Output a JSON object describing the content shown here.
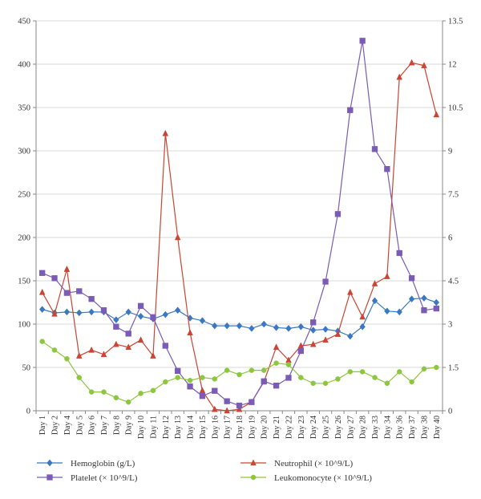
{
  "chart_data": {
    "type": "line",
    "title": "",
    "xlabel": "",
    "ylabel": "",
    "y2label": "",
    "categories": [
      "Day 1",
      "Day 2",
      "Day 4",
      "Day 5",
      "Day 6",
      "Day 7",
      "Day 8",
      "Day 9",
      "Day 10",
      "Day 11",
      "Day 12",
      "Day 13",
      "Day 14",
      "Day 15",
      "Day 16",
      "Day 17",
      "Day 18",
      "Day 19",
      "Day 20",
      "Day 21",
      "Day 22",
      "Day 23",
      "Day 24",
      "Day 25",
      "Day 26",
      "Day 27",
      "Day 28",
      "Day 33",
      "Day 34",
      "Day 36",
      "Day 37",
      "Day 38",
      "Day 40"
    ],
    "ylim": [
      0,
      450
    ],
    "y2lim": [
      0,
      13.5
    ],
    "yticks": [
      "0",
      "50",
      "100",
      "150",
      "200",
      "250",
      "300",
      "350",
      "400",
      "450"
    ],
    "y2ticks": [
      "0",
      "1.5",
      "3",
      "4.5",
      "6",
      "7.5",
      "9",
      "10.5",
      "12",
      "13.5"
    ],
    "grid": true,
    "legend_position": "bottom",
    "series": [
      {
        "name": "Hemoglobin (g/L)",
        "axis": "left",
        "color": "#3a78c4",
        "marker": "diamond",
        "values": [
          117,
          113,
          114,
          113,
          114,
          114,
          105,
          114,
          109,
          106,
          111,
          116,
          107,
          104,
          98,
          98,
          98,
          95,
          100,
          96,
          95,
          97,
          93,
          94,
          92,
          86,
          97,
          127,
          115,
          114,
          129,
          130,
          125
        ]
      },
      {
        "name": "Neutrophil (× 10^9/L)",
        "axis": "right",
        "color": "#cc4433",
        "marker": "triangle",
        "values": [
          4.1,
          3.35,
          4.9,
          1.9,
          2.1,
          1.95,
          2.3,
          2.2,
          2.45,
          1.9,
          9.6,
          6.0,
          2.7,
          0.7,
          0.05,
          0.0,
          0.05,
          0.3,
          1.0,
          2.2,
          1.75,
          2.25,
          2.3,
          2.45,
          2.65,
          4.1,
          3.25,
          4.4,
          4.65,
          11.55,
          12.05,
          11.95,
          10.25
        ]
      },
      {
        "name": "Platelet (× 10^9/L)",
        "axis": "left",
        "color": "#7a5bb5",
        "marker": "square",
        "values": [
          159,
          153,
          136,
          138,
          129,
          116,
          97,
          89,
          121,
          108,
          75,
          46,
          28,
          17,
          23,
          11,
          6,
          10,
          34,
          29,
          38,
          69,
          102,
          149,
          227,
          347,
          427,
          302,
          279,
          182,
          153,
          116,
          118
        ]
      },
      {
        "name": "Leukomonocyte (× 10^9/L)",
        "axis": "right",
        "color": "#8dc63f",
        "marker": "circle",
        "values": [
          2.4,
          2.1,
          1.8,
          1.15,
          0.65,
          0.65,
          0.45,
          0.3,
          0.6,
          0.7,
          1.0,
          1.15,
          1.05,
          1.15,
          1.1,
          1.4,
          1.25,
          1.4,
          1.4,
          1.65,
          1.6,
          1.15,
          0.95,
          0.95,
          1.1,
          1.35,
          1.35,
          1.15,
          0.95,
          1.35,
          1.0,
          1.45,
          1.5
        ]
      }
    ]
  }
}
